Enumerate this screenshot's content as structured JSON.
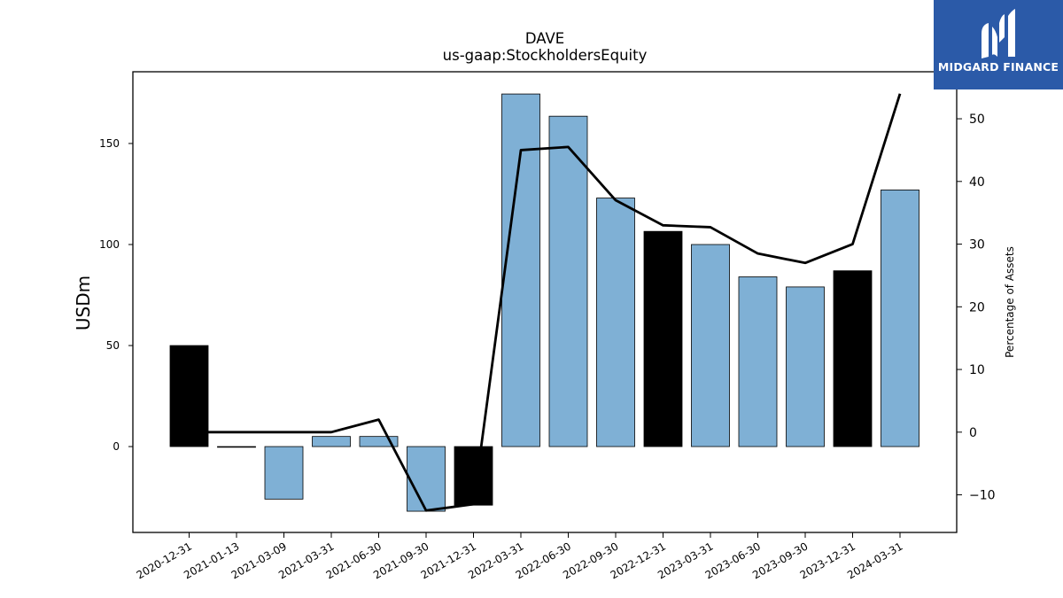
{
  "chart_data": {
    "type": "bar",
    "title": "DAVE",
    "subtitle": "us-gaap:StockholdersEquity",
    "ylabel": "USDm",
    "y2label": "Percentage of Assets",
    "categories": [
      "2020-12-31",
      "2021-01-13",
      "2021-03-09",
      "2021-03-31",
      "2021-06-30",
      "2021-09-30",
      "2021-12-31",
      "2022-03-31",
      "2022-06-30",
      "2022-09-30",
      "2022-12-31",
      "2023-03-31",
      "2023-06-30",
      "2023-09-30",
      "2023-12-31",
      "2024-03-31"
    ],
    "series": [
      {
        "kind": "bar",
        "values": [
          50,
          0,
          -26,
          5,
          5,
          -32,
          -29,
          174.5,
          163.5,
          123,
          106.5,
          100,
          84,
          79,
          87,
          127
        ],
        "highlight": [
          true,
          false,
          false,
          false,
          false,
          false,
          true,
          false,
          false,
          false,
          true,
          false,
          false,
          false,
          true,
          false
        ]
      },
      {
        "kind": "line",
        "axis": "right",
        "values": [
          0,
          0,
          0,
          0,
          2,
          -12.5,
          -11.5,
          45,
          45.5,
          37,
          33,
          32.7,
          28.5,
          27,
          30,
          54
        ]
      }
    ],
    "ylim": [
      -42.5,
      185.5
    ],
    "y2lim": [
      -16,
      57.5
    ],
    "yticks": [
      0,
      50,
      100,
      150
    ],
    "y2ticks": [
      -10,
      0,
      10,
      20,
      30,
      40,
      50
    ],
    "colors": {
      "bar": "#7fb0d5",
      "highlight": "#000000",
      "line": "#000000",
      "edge": "#000000"
    }
  },
  "logo": {
    "text": "MIDGARD FINANCE",
    "background": "#2b5aa8"
  }
}
